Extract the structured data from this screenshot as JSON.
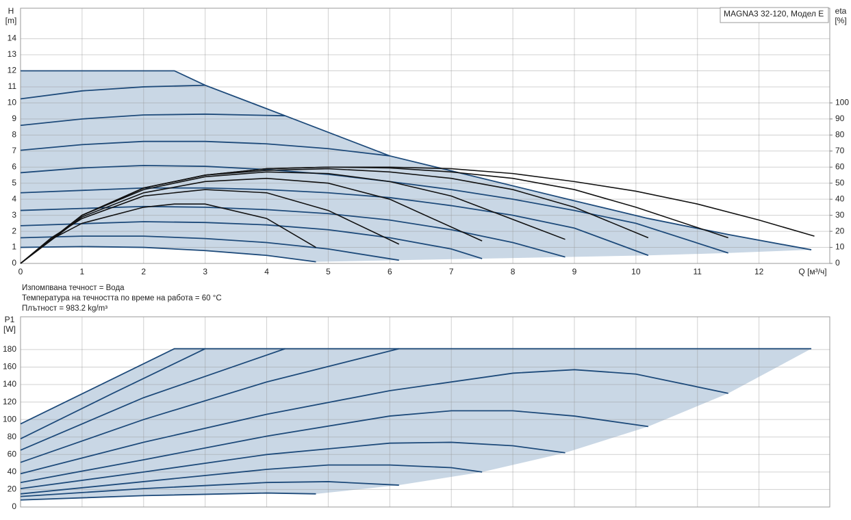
{
  "chart_data": [
    {
      "type": "line",
      "title": "MAGNA3 32-120, Модел E",
      "y_label": "H",
      "y_unit": "[m]",
      "y2_label": "eta",
      "y2_unit": "[%]",
      "x_label": "Q [м³/ч]",
      "xlim": [
        0,
        13.15
      ],
      "ylim": [
        0,
        15.9
      ],
      "y2lim": [
        0,
        159
      ],
      "xticks": [
        0,
        1,
        2,
        3,
        4,
        5,
        6,
        7,
        8,
        9,
        10,
        11,
        12
      ],
      "yticks": [
        0,
        1,
        2,
        3,
        4,
        5,
        6,
        7,
        8,
        9,
        10,
        11,
        12,
        13,
        14
      ],
      "y2ticks": [
        0,
        10,
        20,
        30,
        40,
        50,
        60,
        70,
        80,
        90,
        100
      ],
      "grid": true,
      "area_color": "#c9d7e5",
      "series": [
        {
          "color": "#1d4a7a",
          "x": [
            0,
            2.5,
            3,
            4.3,
            6,
            7.5,
            9,
            10.2,
            11.5,
            12.85
          ],
          "values": [
            12,
            12,
            11.1,
            9.2,
            6.7,
            5.3,
            3.9,
            2.8,
            1.8,
            0.85
          ]
        },
        {
          "color": "#1d4a7a",
          "x": [
            0,
            1,
            2,
            3
          ],
          "values": [
            10.25,
            10.75,
            11.0,
            11.1
          ]
        },
        {
          "color": "#1d4a7a",
          "x": [
            0,
            1,
            2,
            3,
            4.3
          ],
          "values": [
            8.6,
            9.0,
            9.25,
            9.3,
            9.2
          ]
        },
        {
          "color": "#1d4a7a",
          "x": [
            0,
            1,
            2,
            3,
            4,
            5,
            6
          ],
          "values": [
            7.05,
            7.4,
            7.6,
            7.6,
            7.45,
            7.15,
            6.7
          ]
        },
        {
          "color": "#1d4a7a",
          "x": [
            0,
            1,
            2,
            3,
            4,
            5,
            6,
            7,
            8,
            9,
            10,
            11.5
          ],
          "values": [
            5.65,
            5.95,
            6.1,
            6.05,
            5.85,
            5.55,
            5.1,
            4.6,
            4.0,
            3.3,
            2.5,
            0.65
          ]
        },
        {
          "color": "#1d4a7a",
          "x": [
            0,
            2,
            3,
            4,
            5,
            6,
            7,
            8,
            9,
            10.2
          ],
          "values": [
            4.4,
            4.7,
            4.7,
            4.6,
            4.4,
            4.1,
            3.6,
            3.0,
            2.2,
            0.5
          ]
        },
        {
          "color": "#1d4a7a",
          "x": [
            0,
            2,
            3,
            4,
            5,
            6,
            7,
            8,
            8.85
          ],
          "values": [
            3.3,
            3.55,
            3.5,
            3.35,
            3.1,
            2.7,
            2.1,
            1.3,
            0.4
          ]
        },
        {
          "color": "#1d4a7a",
          "x": [
            0,
            2,
            3,
            4,
            5,
            6,
            7,
            7.5
          ],
          "values": [
            2.35,
            2.6,
            2.55,
            2.4,
            2.1,
            1.6,
            0.9,
            0.3
          ]
        },
        {
          "color": "#1d4a7a",
          "x": [
            0,
            1,
            2,
            3,
            4,
            5,
            6.15
          ],
          "values": [
            1.6,
            1.7,
            1.7,
            1.55,
            1.3,
            0.9,
            0.2
          ]
        },
        {
          "color": "#1d4a7a",
          "x": [
            0,
            1,
            2,
            3,
            4,
            4.8
          ],
          "values": [
            1.0,
            1.05,
            1.0,
            0.8,
            0.5,
            0.1
          ]
        },
        {
          "color": "#111111",
          "axis": "y2",
          "x": [
            0,
            0.5,
            1,
            2,
            2.5,
            3,
            4,
            4.8
          ],
          "values": [
            0,
            15,
            25,
            35,
            37,
            37,
            28,
            10
          ]
        },
        {
          "color": "#111111",
          "axis": "y2",
          "x": [
            0,
            0.5,
            1,
            2,
            3,
            4,
            5,
            6.15
          ],
          "values": [
            0,
            16,
            28,
            42,
            46,
            44,
            33,
            12
          ]
        },
        {
          "color": "#111111",
          "axis": "y2",
          "x": [
            0,
            1,
            2,
            3,
            4,
            5,
            6,
            7.5
          ],
          "values": [
            0,
            29,
            44,
            51,
            53,
            50,
            40,
            14
          ]
        },
        {
          "color": "#111111",
          "axis": "y2",
          "x": [
            0,
            1,
            2,
            3,
            4,
            5,
            6,
            7,
            8.85
          ],
          "values": [
            0,
            30,
            46,
            54,
            57,
            56,
            51,
            42,
            15
          ]
        },
        {
          "color": "#111111",
          "axis": "y2",
          "x": [
            0,
            1,
            2,
            3,
            4,
            5,
            6,
            7,
            8,
            9,
            10.2
          ],
          "values": [
            0,
            30,
            47,
            55,
            58,
            59,
            57,
            53,
            46,
            35,
            16
          ]
        },
        {
          "color": "#111111",
          "axis": "y2",
          "x": [
            0,
            1,
            2,
            3,
            4,
            5,
            6,
            7,
            8,
            9,
            10,
            11.5
          ],
          "values": [
            0,
            30,
            47,
            55,
            59,
            60,
            59.5,
            57,
            53,
            46,
            35,
            16
          ]
        },
        {
          "color": "#111111",
          "axis": "y2",
          "x": [
            0,
            1,
            2,
            3,
            4,
            5,
            6,
            7,
            8,
            9,
            10,
            11,
            12,
            12.9
          ],
          "values": [
            0,
            30,
            47,
            55,
            59,
            60,
            60,
            59,
            56,
            51,
            45,
            37,
            27,
            17
          ]
        }
      ]
    },
    {
      "type": "line",
      "y_label": "P1",
      "y_unit": "[W]",
      "xlim": [
        0,
        13.15
      ],
      "ylim": [
        0,
        217.5
      ],
      "xticks": [
        0,
        1,
        2,
        3,
        4,
        5,
        6,
        7,
        8,
        9,
        10,
        11,
        12
      ],
      "xtick_labels": false,
      "yticks": [
        0,
        20,
        40,
        60,
        80,
        100,
        120,
        140,
        160,
        180
      ],
      "grid": true,
      "area_color": "#c9d7e5",
      "series": [
        {
          "color": "#1d4a7a",
          "x": [
            0,
            2.5,
            12.85
          ],
          "values": [
            95,
            181,
            181
          ]
        },
        {
          "color": "#1d4a7a",
          "x": [
            0,
            1.5,
            3
          ],
          "values": [
            78,
            130,
            181
          ]
        },
        {
          "color": "#1d4a7a",
          "x": [
            0,
            2,
            4.3
          ],
          "values": [
            65,
            125,
            181
          ]
        },
        {
          "color": "#1d4a7a",
          "x": [
            0,
            2,
            4,
            6.15
          ],
          "values": [
            51,
            100,
            143,
            181
          ]
        },
        {
          "color": "#1d4a7a",
          "x": [
            0,
            2,
            4,
            6,
            8,
            9,
            10,
            11.5
          ],
          "values": [
            38,
            74,
            106,
            133,
            153,
            157,
            152,
            130
          ]
        },
        {
          "color": "#1d4a7a",
          "x": [
            0,
            2,
            4,
            6,
            7,
            8,
            9,
            10.2
          ],
          "values": [
            28,
            54,
            81,
            104,
            110,
            110,
            104,
            92
          ]
        },
        {
          "color": "#1d4a7a",
          "x": [
            0,
            2,
            4,
            6,
            7,
            8,
            8.85
          ],
          "values": [
            21,
            40,
            60,
            73,
            74,
            70,
            62
          ]
        },
        {
          "color": "#1d4a7a",
          "x": [
            0,
            2,
            4,
            5,
            6,
            7,
            7.5
          ],
          "values": [
            15,
            29,
            43,
            48,
            48,
            45,
            40
          ]
        },
        {
          "color": "#1d4a7a",
          "x": [
            0,
            2,
            4,
            5,
            6.15
          ],
          "values": [
            12,
            21,
            28,
            29,
            25
          ]
        },
        {
          "color": "#1d4a7a",
          "x": [
            0,
            2,
            4,
            4.8
          ],
          "values": [
            8,
            13,
            16,
            15
          ]
        }
      ]
    }
  ],
  "notes": [
    "Изпомпвана течност = Вода",
    "Температура на течността по време на работа = 60 °C",
    "Плътност = 983.2 kg/m³"
  ]
}
